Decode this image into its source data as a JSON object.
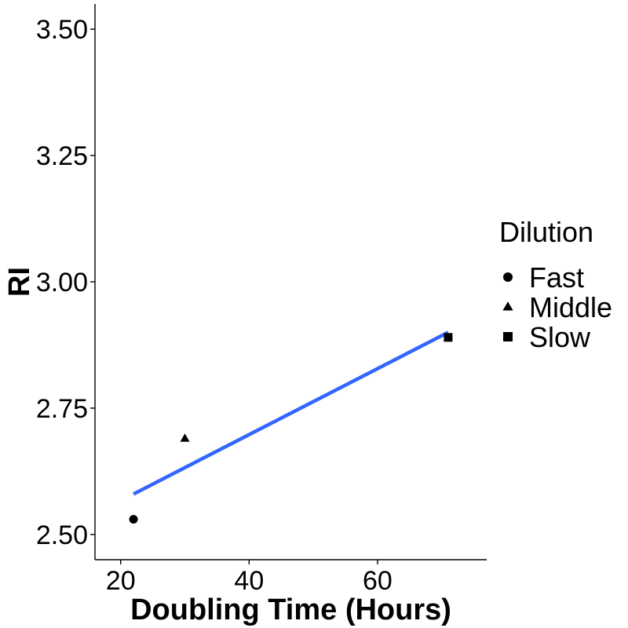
{
  "chart_data": {
    "type": "scatter",
    "xlabel": "Doubling Time (Hours)",
    "ylabel": "RI",
    "xlim": [
      16,
      77
    ],
    "ylim": [
      2.45,
      3.55
    ],
    "x_ticks": [
      20,
      40,
      60
    ],
    "x_tick_labels": [
      "20",
      "40",
      "60"
    ],
    "y_ticks": [
      2.5,
      2.75,
      3.0,
      3.25,
      3.5
    ],
    "y_tick_labels": [
      "2.50",
      "2.75",
      "3.00",
      "3.25",
      "3.50"
    ],
    "grid": false,
    "legend": {
      "title": "Dilution",
      "position": "right",
      "entries": [
        {
          "label": "Fast",
          "shape": "circle"
        },
        {
          "label": "Middle",
          "shape": "triangle"
        },
        {
          "label": "Slow",
          "shape": "square"
        }
      ]
    },
    "points": [
      {
        "group": "Fast",
        "x": 22,
        "y": 2.53
      },
      {
        "group": "Middle",
        "x": 30,
        "y": 2.69
      },
      {
        "group": "Slow",
        "x": 71,
        "y": 2.89
      }
    ],
    "fit_line": {
      "x": [
        22,
        71
      ],
      "y": [
        2.58,
        2.9
      ],
      "color": "#3366FF"
    },
    "point_color": "#000000"
  }
}
